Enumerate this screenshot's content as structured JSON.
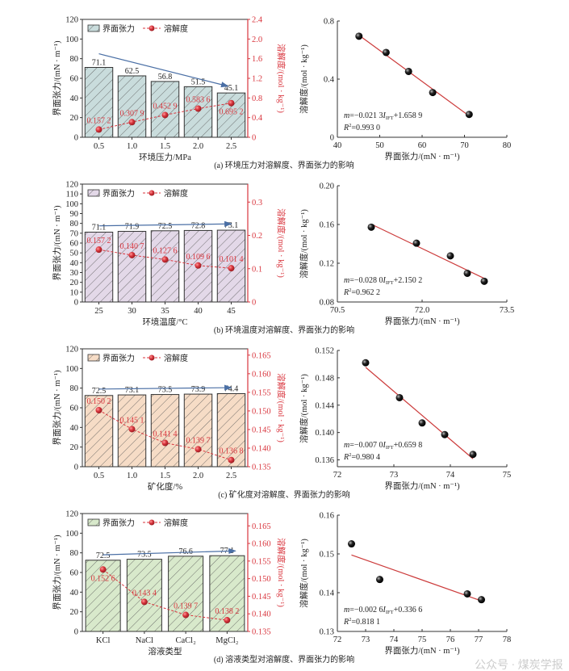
{
  "colors": {
    "red": "#d9363e",
    "arrow": "#4a6fa5",
    "point": "#111111"
  },
  "watermark": "公众号 · 煤炭学报",
  "chart_data": [
    {
      "type": "bar",
      "panel_caption": "(a) 环境压力对溶解度、界面张力的影响",
      "categories": [
        "0.5",
        "1.0",
        "1.5",
        "2.0",
        "2.5"
      ],
      "xlabel": "环境压力/MPa",
      "ylabel": "界面张力/(mN · m⁻¹)",
      "y2label": "溶解度/(mol · kg⁻¹)",
      "ylim": [
        0,
        120
      ],
      "y2lim": [
        0,
        2.4
      ],
      "yticks": [
        "0",
        "20",
        "40",
        "60",
        "80",
        "100",
        "120"
      ],
      "y2ticks": [
        "0",
        "0.4",
        "0.8",
        "1.2",
        "1.6",
        "2.0",
        "2.4"
      ],
      "bar_color": "#c9dcdc",
      "legend": [
        "界面张力",
        "溶解度"
      ],
      "series": [
        {
          "name": "界面张力",
          "axis": "left",
          "values": [
            71.1,
            62.5,
            56.8,
            51.5,
            45.1
          ],
          "labels": [
            "71.1",
            "62.5",
            "56.8",
            "51.5",
            "45.1"
          ]
        },
        {
          "name": "溶解度",
          "axis": "right",
          "values": [
            0.1572,
            0.3079,
            0.4529,
            0.5836,
            0.6952
          ],
          "labels": [
            "0.157 2",
            "0.307 9",
            "0.452 9",
            "0.583 6",
            "0.695 2"
          ]
        }
      ],
      "trend_arrow": {
        "from": [
          0,
          85
        ],
        "to": [
          3.9,
          52
        ]
      }
    },
    {
      "type": "scatter",
      "x": [
        71.1,
        62.5,
        56.8,
        51.5,
        45.1
      ],
      "y": [
        0.1572,
        0.3079,
        0.4529,
        0.5836,
        0.6952
      ],
      "xlim": [
        40,
        80
      ],
      "ylim": [
        0,
        0.8
      ],
      "xticks": [
        "40",
        "50",
        "60",
        "70",
        "80"
      ],
      "yticks": [
        "0",
        "0.4",
        "0.8"
      ],
      "xlabel": "界面张力/(mN · m⁻¹)",
      "ylabel": "溶解度/(mol · kg⁻¹)",
      "equation": {
        "lhs": "m",
        "coef": "=−0.021 3",
        "var": "I",
        "sub": "IFT",
        "const": "+1.658 9"
      },
      "r2": "=0.993 0"
    },
    {
      "type": "bar",
      "panel_caption": "(b) 环境温度对溶解度、界面张力的影响",
      "categories": [
        "25",
        "30",
        "35",
        "40",
        "45"
      ],
      "xlabel": "环境温度/°C",
      "ylabel": "界面张力/(mN · m⁻¹)",
      "y2label": "溶解度/(mol · kg⁻¹)",
      "ylim": [
        0,
        120
      ],
      "y2lim": [
        0,
        0.354
      ],
      "yticks": [
        "0",
        "10",
        "20",
        "30",
        "40",
        "50",
        "60",
        "70",
        "80",
        "90",
        "100",
        "110",
        "120"
      ],
      "y2ticks": [
        "0",
        "0.1",
        "0.2",
        "0.3"
      ],
      "bar_color": "#e3d8e8",
      "legend": [
        "界面张力",
        "溶解度"
      ],
      "series": [
        {
          "name": "界面张力",
          "axis": "left",
          "values": [
            71.1,
            71.9,
            72.5,
            72.8,
            73.1
          ],
          "labels": [
            "71.1",
            "71.9",
            "72.5",
            "72.8",
            "73.1"
          ]
        },
        {
          "name": "溶解度",
          "axis": "right",
          "values": [
            0.1572,
            0.1407,
            0.1276,
            0.1096,
            0.1014
          ],
          "labels": [
            "0.157 2",
            "0.140 7",
            "0.127 6",
            "0.109 6",
            "0.101 4"
          ]
        }
      ],
      "trend_arrow": {
        "from": [
          0,
          77.5
        ],
        "to": [
          4,
          79.5
        ]
      }
    },
    {
      "type": "scatter",
      "x": [
        71.1,
        71.9,
        72.5,
        72.8,
        73.1
      ],
      "y": [
        0.1572,
        0.1407,
        0.1276,
        0.1096,
        0.1014
      ],
      "xlim": [
        70.5,
        73.5
      ],
      "ylim": [
        0.08,
        0.2
      ],
      "xticks": [
        "70.5",
        "72.0",
        "73.5"
      ],
      "yticks": [
        "0.08",
        "0.12",
        "0.16",
        "0.20"
      ],
      "xlabel": "界面张力/(mN · m⁻¹)",
      "ylabel": "溶解度/(mol · kg⁻¹)",
      "equation": {
        "lhs": "m",
        "coef": "=−0.028 0",
        "var": "I",
        "sub": "IFT",
        "const": "+2.150 2"
      },
      "r2": "=0.962 2"
    },
    {
      "type": "bar",
      "panel_caption": "(c) 矿化度对溶解度、界面张力的影响",
      "categories": [
        "0.5",
        "1.0",
        "1.5",
        "2.0",
        "2.5"
      ],
      "xlabel": "矿化度/%",
      "ylabel": "界面张力/(mN · m⁻¹)",
      "y2label": "溶解度/(mol · kg⁻¹)",
      "ylim": [
        0,
        120
      ],
      "y2lim": [
        0.135,
        0.1667
      ],
      "yticks": [
        "0",
        "20",
        "40",
        "60",
        "80",
        "100",
        "120"
      ],
      "y2ticks": [
        "0.135",
        "0.140",
        "0.145",
        "0.150",
        "0.155",
        "0.160",
        "0.165"
      ],
      "bar_color": "#f6dcc6",
      "legend": [
        "界面张力",
        "溶解度"
      ],
      "series": [
        {
          "name": "界面张力",
          "axis": "left",
          "values": [
            72.5,
            73.1,
            73.5,
            73.9,
            74.4
          ],
          "labels": [
            "72.5",
            "73.1",
            "73.5",
            "73.9",
            "74.4"
          ]
        },
        {
          "name": "溶解度",
          "axis": "right",
          "values": [
            0.1502,
            0.1451,
            0.1414,
            0.1397,
            0.1368
          ],
          "labels": [
            "0.150 2",
            "0.145 1",
            "0.141 4",
            "0.139 7",
            "0.136 8"
          ]
        }
      ],
      "trend_arrow": {
        "from": [
          0,
          79
        ],
        "to": [
          4,
          80.5
        ]
      }
    },
    {
      "type": "scatter",
      "x": [
        72.5,
        73.1,
        73.5,
        73.9,
        74.4
      ],
      "y": [
        0.1502,
        0.1451,
        0.1414,
        0.1397,
        0.1368
      ],
      "xlim": [
        72,
        75
      ],
      "ylim": [
        0.135,
        0.152
      ],
      "xticks": [
        "72",
        "73",
        "74",
        "75"
      ],
      "yticks": [
        "0.136",
        "0.140",
        "0.144",
        "0.148",
        "0.152"
      ],
      "xlabel": "界面张力/(mN · m⁻¹)",
      "ylabel": "溶解度/(mol · kg⁻¹)",
      "equation": {
        "lhs": "m",
        "coef": "=−0.007 0",
        "var": "I",
        "sub": "IFT",
        "const": "+0.659 8"
      },
      "r2": "=0.980 4"
    },
    {
      "type": "bar",
      "panel_caption": "(d) 溶液类型对溶解度、界面张力的影响",
      "categories": [
        "KCl",
        "NaCl",
        "CaCl₂",
        "MgCl₂"
      ],
      "xlabel": "溶液类型",
      "ylabel": "界面张力/(mN · m⁻¹)",
      "y2label": "溶解度/(mol · kg⁻¹)",
      "ylim": [
        0,
        120
      ],
      "y2lim": [
        0.135,
        0.1685
      ],
      "yticks": [
        "0",
        "20",
        "40",
        "60",
        "80",
        "100",
        "120"
      ],
      "y2ticks": [
        "0.135",
        "0.140",
        "0.145",
        "0.150",
        "0.155",
        "0.160",
        "0.165"
      ],
      "bar_color": "#d8e9cb",
      "legend": [
        "界面张力",
        "溶解度"
      ],
      "series": [
        {
          "name": "界面张力",
          "axis": "left",
          "values": [
            72.5,
            73.5,
            76.6,
            77.1
          ],
          "labels": [
            "72.5",
            "73.5",
            "76.6",
            "77.1"
          ]
        },
        {
          "name": "溶解度",
          "axis": "right",
          "values": [
            0.1526,
            0.1434,
            0.1397,
            0.1382
          ],
          "labels": [
            "0.152 6",
            "0.143 4",
            "0.139 7",
            "0.138 2"
          ]
        }
      ],
      "trend_arrow": {
        "from": [
          0,
          78
        ],
        "to": [
          3.2,
          82
        ]
      }
    },
    {
      "type": "scatter",
      "x": [
        72.5,
        73.5,
        76.6,
        77.1
      ],
      "y": [
        0.1526,
        0.1434,
        0.1397,
        0.1382
      ],
      "xlim": [
        72,
        78
      ],
      "ylim": [
        0.13,
        0.16
      ],
      "xticks": [
        "72",
        "73",
        "74",
        "75",
        "76",
        "77",
        "78"
      ],
      "yticks": [
        "0.13",
        "0.14",
        "0.15",
        "0.16"
      ],
      "xlabel": "界面张力/(mN · m⁻¹)",
      "ylabel": "溶解度/(mol · kg⁻¹)",
      "equation": {
        "lhs": "m",
        "coef": "=−0.002 6",
        "var": "I",
        "sub": "IFT",
        "const": "+0.336 6"
      },
      "r2": "=0.818 1"
    }
  ]
}
